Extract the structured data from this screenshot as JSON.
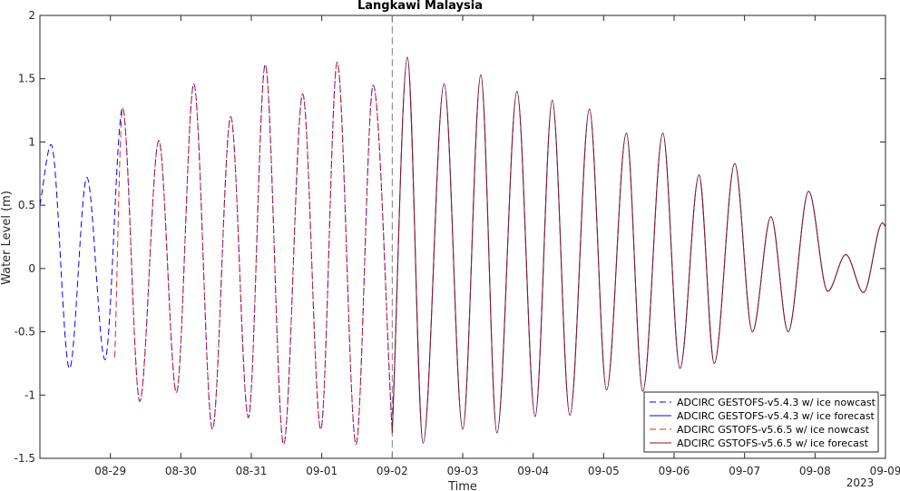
{
  "chart_data": {
    "type": "line",
    "title": "Langkawi Malaysia",
    "xlabel": "Time",
    "ylabel": "Water Level (m)",
    "year_label": "2023",
    "x_unit": "date",
    "xlim": [
      "2023-08-28 00:00",
      "2023-09-09 00:00"
    ],
    "ylim": [
      -1.5,
      2
    ],
    "yticks": [
      -1.5,
      -1,
      -0.5,
      0,
      0.5,
      1,
      1.5,
      2
    ],
    "ytick_labels": [
      "-1.5",
      "-1",
      "-0.5",
      "0",
      "0.5",
      "1",
      "1.5",
      "2"
    ],
    "xticks": [
      "2023-08-29",
      "2023-08-30",
      "2023-08-31",
      "2023-09-01",
      "2023-09-02",
      "2023-09-03",
      "2023-09-04",
      "2023-09-05",
      "2023-09-06",
      "2023-09-07",
      "2023-09-08",
      "2023-09-09"
    ],
    "xtick_labels": [
      "08-29",
      "08-30",
      "08-31",
      "09-01",
      "09-02",
      "09-03",
      "09-04",
      "09-05",
      "09-06",
      "09-07",
      "09-08",
      "09-09"
    ],
    "grid": false,
    "legend_position": "bottom-right",
    "forecast_start": "2023-09-02 00:00",
    "series": [
      {
        "name": "ADCIRC GESTOFS-v5.4.3 w/ ice nowcast",
        "color": "#0000ff",
        "style": "dashed",
        "points": [
          [
            "2023-08-28 00:00",
            0.5
          ],
          [
            "2023-08-28 03:50",
            0.98
          ],
          [
            "2023-08-28 10:05",
            -0.79
          ],
          [
            "2023-08-28 16:00",
            0.72
          ],
          [
            "2023-08-28 22:10",
            -0.72
          ],
          [
            "2023-08-29 04:10",
            1.27
          ],
          [
            "2023-08-29 10:00",
            -1.05
          ],
          [
            "2023-08-29 16:30",
            1.01
          ],
          [
            "2023-08-29 22:30",
            -0.98
          ],
          [
            "2023-08-30 04:25",
            1.46
          ],
          [
            "2023-08-30 10:45",
            -1.27
          ],
          [
            "2023-08-30 17:00",
            1.2
          ],
          [
            "2023-08-30 23:00",
            -1.18
          ],
          [
            "2023-08-31 04:45",
            1.61
          ],
          [
            "2023-08-31 11:00",
            -1.39
          ],
          [
            "2023-08-31 17:30",
            1.38
          ],
          [
            "2023-08-31 23:40",
            -1.27
          ],
          [
            "2023-09-01 05:15",
            1.63
          ],
          [
            "2023-09-01 11:40",
            -1.39
          ],
          [
            "2023-09-01 17:30",
            1.45
          ],
          [
            "2023-09-02 00:00",
            -1.3
          ]
        ]
      },
      {
        "name": "ADCIRC GESTOFS-v5.4.3 w/ ice forecast",
        "color": "#0000ff",
        "style": "solid",
        "points": [
          [
            "2023-09-02 00:00",
            -1.3
          ],
          [
            "2023-09-02 05:10",
            1.67
          ],
          [
            "2023-09-02 10:30",
            -1.38
          ],
          [
            "2023-09-02 17:40",
            1.46
          ],
          [
            "2023-09-03 00:00",
            -1.27
          ],
          [
            "2023-09-03 06:10",
            1.53
          ],
          [
            "2023-09-03 11:40",
            -1.3
          ],
          [
            "2023-09-03 18:30",
            1.4
          ],
          [
            "2023-09-04 00:40",
            -1.17
          ],
          [
            "2023-09-04 06:30",
            1.33
          ],
          [
            "2023-09-04 12:30",
            -1.16
          ],
          [
            "2023-09-04 19:10",
            1.26
          ],
          [
            "2023-09-05 01:00",
            -0.96
          ],
          [
            "2023-09-05 07:45",
            1.07
          ],
          [
            "2023-09-05 13:20",
            -0.97
          ],
          [
            "2023-09-05 20:10",
            1.07
          ],
          [
            "2023-09-06 02:00",
            -0.79
          ],
          [
            "2023-09-06 08:30",
            0.74
          ],
          [
            "2023-09-06 13:40",
            -0.75
          ],
          [
            "2023-09-06 20:40",
            0.83
          ],
          [
            "2023-09-07 02:40",
            -0.5
          ],
          [
            "2023-09-07 09:00",
            0.41
          ],
          [
            "2023-09-07 14:50",
            -0.5
          ],
          [
            "2023-09-07 21:50",
            0.61
          ],
          [
            "2023-09-08 04:20",
            -0.18
          ],
          [
            "2023-09-08 10:30",
            0.11
          ],
          [
            "2023-09-08 16:30",
            -0.19
          ],
          [
            "2023-09-08 23:00",
            0.36
          ],
          [
            "2023-09-09 00:00",
            0.33
          ]
        ]
      },
      {
        "name": "ADCIRC GSTOFS-v5.6.5 w/ ice nowcast",
        "color": "#d62728",
        "style": "dashed",
        "points": [
          [
            "2023-08-29 01:30",
            -0.7
          ],
          [
            "2023-08-29 04:10",
            1.27
          ],
          [
            "2023-08-29 10:00",
            -1.05
          ],
          [
            "2023-08-29 16:30",
            1.01
          ],
          [
            "2023-08-29 22:30",
            -0.98
          ],
          [
            "2023-08-30 04:25",
            1.46
          ],
          [
            "2023-08-30 10:45",
            -1.27
          ],
          [
            "2023-08-30 17:00",
            1.2
          ],
          [
            "2023-08-30 23:00",
            -1.18
          ],
          [
            "2023-08-31 04:45",
            1.61
          ],
          [
            "2023-08-31 11:00",
            -1.39
          ],
          [
            "2023-08-31 17:30",
            1.38
          ],
          [
            "2023-08-31 23:40",
            -1.27
          ],
          [
            "2023-09-01 05:15",
            1.63
          ],
          [
            "2023-09-01 11:40",
            -1.39
          ],
          [
            "2023-09-01 17:30",
            1.45
          ],
          [
            "2023-09-02 00:00",
            -1.3
          ]
        ]
      },
      {
        "name": "ADCIRC GSTOFS-v5.6.5 w/ ice forecast",
        "color": "#8b1a1a",
        "style": "solid",
        "points": [
          [
            "2023-09-02 00:00",
            -1.3
          ],
          [
            "2023-09-02 05:10",
            1.67
          ],
          [
            "2023-09-02 10:30",
            -1.38
          ],
          [
            "2023-09-02 17:40",
            1.46
          ],
          [
            "2023-09-03 00:00",
            -1.27
          ],
          [
            "2023-09-03 06:10",
            1.53
          ],
          [
            "2023-09-03 11:40",
            -1.3
          ],
          [
            "2023-09-03 18:30",
            1.4
          ],
          [
            "2023-09-04 00:40",
            -1.17
          ],
          [
            "2023-09-04 06:30",
            1.33
          ],
          [
            "2023-09-04 12:30",
            -1.16
          ],
          [
            "2023-09-04 19:10",
            1.26
          ],
          [
            "2023-09-05 01:00",
            -0.96
          ],
          [
            "2023-09-05 07:45",
            1.07
          ],
          [
            "2023-09-05 13:20",
            -0.97
          ],
          [
            "2023-09-05 20:10",
            1.07
          ],
          [
            "2023-09-06 02:00",
            -0.79
          ],
          [
            "2023-09-06 08:30",
            0.74
          ],
          [
            "2023-09-06 13:40",
            -0.75
          ],
          [
            "2023-09-06 20:40",
            0.83
          ],
          [
            "2023-09-07 02:40",
            -0.5
          ],
          [
            "2023-09-07 09:00",
            0.41
          ],
          [
            "2023-09-07 14:50",
            -0.5
          ],
          [
            "2023-09-07 21:50",
            0.61
          ],
          [
            "2023-09-08 04:20",
            -0.18
          ],
          [
            "2023-09-08 10:30",
            0.11
          ],
          [
            "2023-09-08 16:30",
            -0.19
          ],
          [
            "2023-09-08 23:00",
            0.36
          ],
          [
            "2023-09-09 00:00",
            0.33
          ]
        ]
      }
    ]
  }
}
